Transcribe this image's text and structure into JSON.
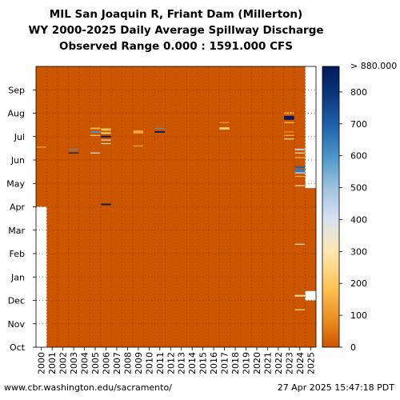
{
  "header": {
    "title_line1": "MIL San Joaquin R, Friant Dam (Millerton)",
    "title_line2": "WY 2000-2025 Daily Average Spillway Discharge",
    "title_line3": "Observed Range 0.000 : 1591.000 CFS"
  },
  "footer": {
    "source": "www.cbr.washington.edu/sacramento/",
    "timestamp": "27 Apr 2025 15:47:18 PDT"
  },
  "colors": {
    "background_zero": "#cc5500",
    "missing": "#ffffff",
    "gridline": "#7a2a00"
  },
  "chart_data": {
    "type": "heatmap",
    "title": "MIL San Joaquin R, Friant Dam (Millerton)",
    "subtitle": "WY 2000-2025 Daily Average Spillway Discharge",
    "range_label": "Observed Range 0.000 : 1591.000 CFS",
    "x_categories": [
      "2000",
      "2001",
      "2002",
      "2003",
      "2004",
      "2005",
      "2006",
      "2007",
      "2008",
      "2009",
      "2010",
      "2011",
      "2012",
      "2013",
      "2014",
      "2015",
      "2016",
      "2017",
      "2018",
      "2019",
      "2020",
      "2021",
      "2022",
      "2023",
      "2024",
      "2025"
    ],
    "y_categories": [
      "Oct",
      "Nov",
      "Dec",
      "Jan",
      "Feb",
      "Mar",
      "Apr",
      "May",
      "Jun",
      "Jul",
      "Aug",
      "Sep"
    ],
    "colorbar": {
      "ticks": [
        0,
        100,
        200,
        300,
        400,
        500,
        600,
        700,
        800
      ],
      "max_label": "> 880.000",
      "range": [
        0,
        880
      ],
      "stops": [
        {
          "v": 0,
          "c": "#cc5500"
        },
        {
          "v": 80,
          "c": "#e98a1f"
        },
        {
          "v": 180,
          "c": "#fdc050"
        },
        {
          "v": 300,
          "c": "#fde7b0"
        },
        {
          "v": 400,
          "c": "#d9e2ef"
        },
        {
          "v": 500,
          "c": "#9dc3e0"
        },
        {
          "v": 600,
          "c": "#4a95c8"
        },
        {
          "v": 700,
          "c": "#1f5fa6"
        },
        {
          "v": 800,
          "c": "#0a3378"
        },
        {
          "v": 880,
          "c": "#041a5a"
        }
      ]
    },
    "missing_data": [
      {
        "year": "2000",
        "from_month": 0.0,
        "to_month": 6.0
      },
      {
        "year": "2025",
        "from_month": 6.8,
        "to_month": 12.0
      },
      {
        "year": "2025",
        "from_month": 2.0,
        "to_month": 2.4
      }
    ],
    "events": [
      {
        "year": "2000",
        "month": 8.55,
        "days": 1,
        "value": 120
      },
      {
        "year": "2003",
        "month": 8.3,
        "days": 1,
        "value": 880
      },
      {
        "year": "2003",
        "month": 8.45,
        "days": 1,
        "value": 600
      },
      {
        "year": "2005",
        "month": 8.3,
        "days": 1,
        "value": 400
      },
      {
        "year": "2005",
        "month": 9.05,
        "days": 1,
        "value": 200
      },
      {
        "year": "2005",
        "month": 9.2,
        "days": 2,
        "value": 600
      },
      {
        "year": "2005",
        "month": 9.35,
        "days": 2,
        "value": 150
      },
      {
        "year": "2006",
        "month": 6.1,
        "days": 2,
        "value": 880
      },
      {
        "year": "2006",
        "month": 8.7,
        "days": 1,
        "value": 300
      },
      {
        "year": "2006",
        "month": 8.85,
        "days": 1,
        "value": 350
      },
      {
        "year": "2006",
        "month": 9.0,
        "days": 2,
        "value": 880
      },
      {
        "year": "2006",
        "month": 9.15,
        "days": 2,
        "value": 250
      },
      {
        "year": "2006",
        "month": 9.3,
        "days": 3,
        "value": 180
      },
      {
        "year": "2009",
        "month": 8.6,
        "days": 1,
        "value": 150
      },
      {
        "year": "2009",
        "month": 9.2,
        "days": 4,
        "value": 130
      },
      {
        "year": "2011",
        "month": 9.2,
        "days": 2,
        "value": 880
      },
      {
        "year": "2011",
        "month": 9.35,
        "days": 1,
        "value": 600
      },
      {
        "year": "2017",
        "month": 9.35,
        "days": 3,
        "value": 220
      },
      {
        "year": "2017",
        "month": 9.6,
        "days": 1,
        "value": 120
      },
      {
        "year": "2023",
        "month": 8.9,
        "days": 1,
        "value": 300
      },
      {
        "year": "2023",
        "month": 9.05,
        "days": 1,
        "value": 150
      },
      {
        "year": "2023",
        "month": 9.2,
        "days": 1,
        "value": 100
      },
      {
        "year": "2023",
        "month": 9.6,
        "days": 2,
        "value": 120
      },
      {
        "year": "2023",
        "month": 9.8,
        "days": 5,
        "value": 880
      },
      {
        "year": "2023",
        "month": 10.0,
        "days": 2,
        "value": 150
      },
      {
        "year": "2024",
        "month": 1.6,
        "days": 1,
        "value": 300
      },
      {
        "year": "2024",
        "month": 2.2,
        "days": 2,
        "value": 300
      },
      {
        "year": "2024",
        "month": 4.4,
        "days": 1,
        "value": 300
      },
      {
        "year": "2024",
        "month": 6.9,
        "days": 1,
        "value": 300
      },
      {
        "year": "2024",
        "month": 7.3,
        "days": 1,
        "value": 150
      },
      {
        "year": "2024",
        "month": 7.45,
        "days": 2,
        "value": 500
      },
      {
        "year": "2024",
        "month": 7.55,
        "days": 4,
        "value": 650
      },
      {
        "year": "2024",
        "month": 7.7,
        "days": 2,
        "value": 700
      },
      {
        "year": "2024",
        "month": 8.1,
        "days": 1,
        "value": 150
      },
      {
        "year": "2024",
        "month": 8.3,
        "days": 1,
        "value": 300
      },
      {
        "year": "2024",
        "month": 8.45,
        "days": 2,
        "value": 450
      }
    ]
  }
}
